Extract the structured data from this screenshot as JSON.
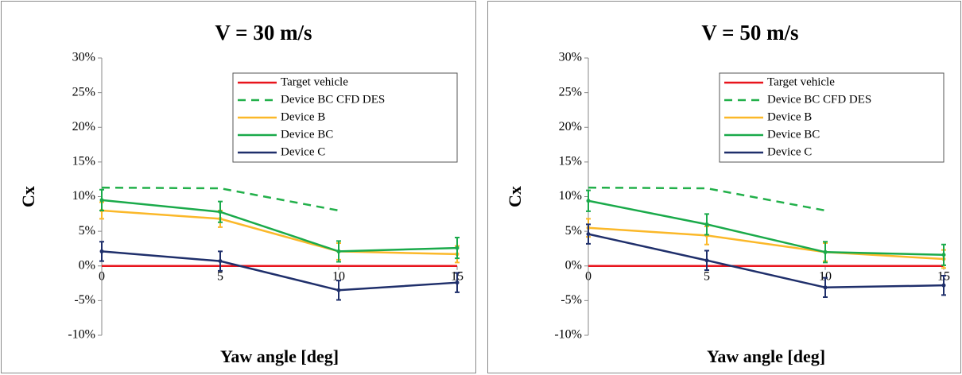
{
  "chart_data": [
    {
      "type": "line",
      "title": "V = 30 m/s",
      "x_label": "Yaw angle [deg]",
      "y_label": "Cx",
      "x": [
        0,
        5,
        10,
        15
      ],
      "xlim": [
        0,
        15
      ],
      "xticks": [
        0,
        5,
        10,
        15
      ],
      "ylim": [
        -10,
        30
      ],
      "yticks": [
        {
          "value": -10,
          "label": "-10%"
        },
        {
          "value": -5,
          "label": "-5%"
        },
        {
          "value": 0,
          "label": "0%"
        },
        {
          "value": 5,
          "label": "5%"
        },
        {
          "value": 10,
          "label": "10%"
        },
        {
          "value": 15,
          "label": "15%"
        },
        {
          "value": 20,
          "label": "20%"
        },
        {
          "value": 25,
          "label": "25%"
        },
        {
          "value": 30,
          "label": "30%"
        }
      ],
      "legend": "upper right",
      "series": [
        {
          "name": "Target vehicle",
          "color": "#e8141c",
          "values": [
            0,
            0,
            0,
            0
          ]
        },
        {
          "name": "Device BC CFD  DES",
          "color": "#22b04a",
          "dashed": true,
          "values": [
            11.3,
            11.2,
            8.0,
            null
          ]
        },
        {
          "name": "Device B",
          "color": "#fbb829",
          "values": [
            8.0,
            6.8,
            2.1,
            1.7
          ],
          "errors": [
            1.2,
            1.2,
            1.2,
            1.2
          ]
        },
        {
          "name": "Device BC",
          "color": "#1aaa4a",
          "values": [
            9.5,
            7.8,
            2.1,
            2.6
          ],
          "errors": [
            1.5,
            1.5,
            1.5,
            1.5
          ]
        },
        {
          "name": "Device C",
          "color": "#1f2f6b",
          "values": [
            2.1,
            0.7,
            -3.5,
            -2.4
          ],
          "errors": [
            1.4,
            1.4,
            1.4,
            1.4
          ]
        }
      ]
    },
    {
      "type": "line",
      "title": "V = 50 m/s",
      "x_label": "Yaw angle [deg]",
      "y_label": "Cx",
      "x": [
        0,
        5,
        10,
        15
      ],
      "xlim": [
        0,
        15
      ],
      "xticks": [
        0,
        5,
        10,
        15
      ],
      "ylim": [
        -10,
        30
      ],
      "yticks": [
        {
          "value": -10,
          "label": "-10%"
        },
        {
          "value": -5,
          "label": "-5%"
        },
        {
          "value": 0,
          "label": "0%"
        },
        {
          "value": 5,
          "label": "5%"
        },
        {
          "value": 10,
          "label": "10%"
        },
        {
          "value": 15,
          "label": "15%"
        },
        {
          "value": 20,
          "label": "20%"
        },
        {
          "value": 25,
          "label": "25%"
        },
        {
          "value": 30,
          "label": "30%"
        }
      ],
      "legend": "upper right",
      "series": [
        {
          "name": "Target vehicle",
          "color": "#e8141c",
          "values": [
            0,
            0,
            0,
            0
          ]
        },
        {
          "name": "Device BC CFD  DES",
          "color": "#22b04a",
          "dashed": true,
          "values": [
            11.3,
            11.2,
            8.0,
            null
          ]
        },
        {
          "name": "Device B",
          "color": "#fbb829",
          "values": [
            5.5,
            4.4,
            2.0,
            1.0
          ],
          "errors": [
            1.3,
            1.3,
            1.3,
            1.3
          ]
        },
        {
          "name": "Device BC",
          "color": "#1aaa4a",
          "values": [
            9.4,
            6.0,
            2.0,
            1.6
          ],
          "errors": [
            1.5,
            1.5,
            1.5,
            1.5
          ]
        },
        {
          "name": "Device C",
          "color": "#1f2f6b",
          "values": [
            4.6,
            0.8,
            -3.1,
            -2.8
          ],
          "errors": [
            1.4,
            1.4,
            1.4,
            1.4
          ]
        }
      ]
    }
  ]
}
